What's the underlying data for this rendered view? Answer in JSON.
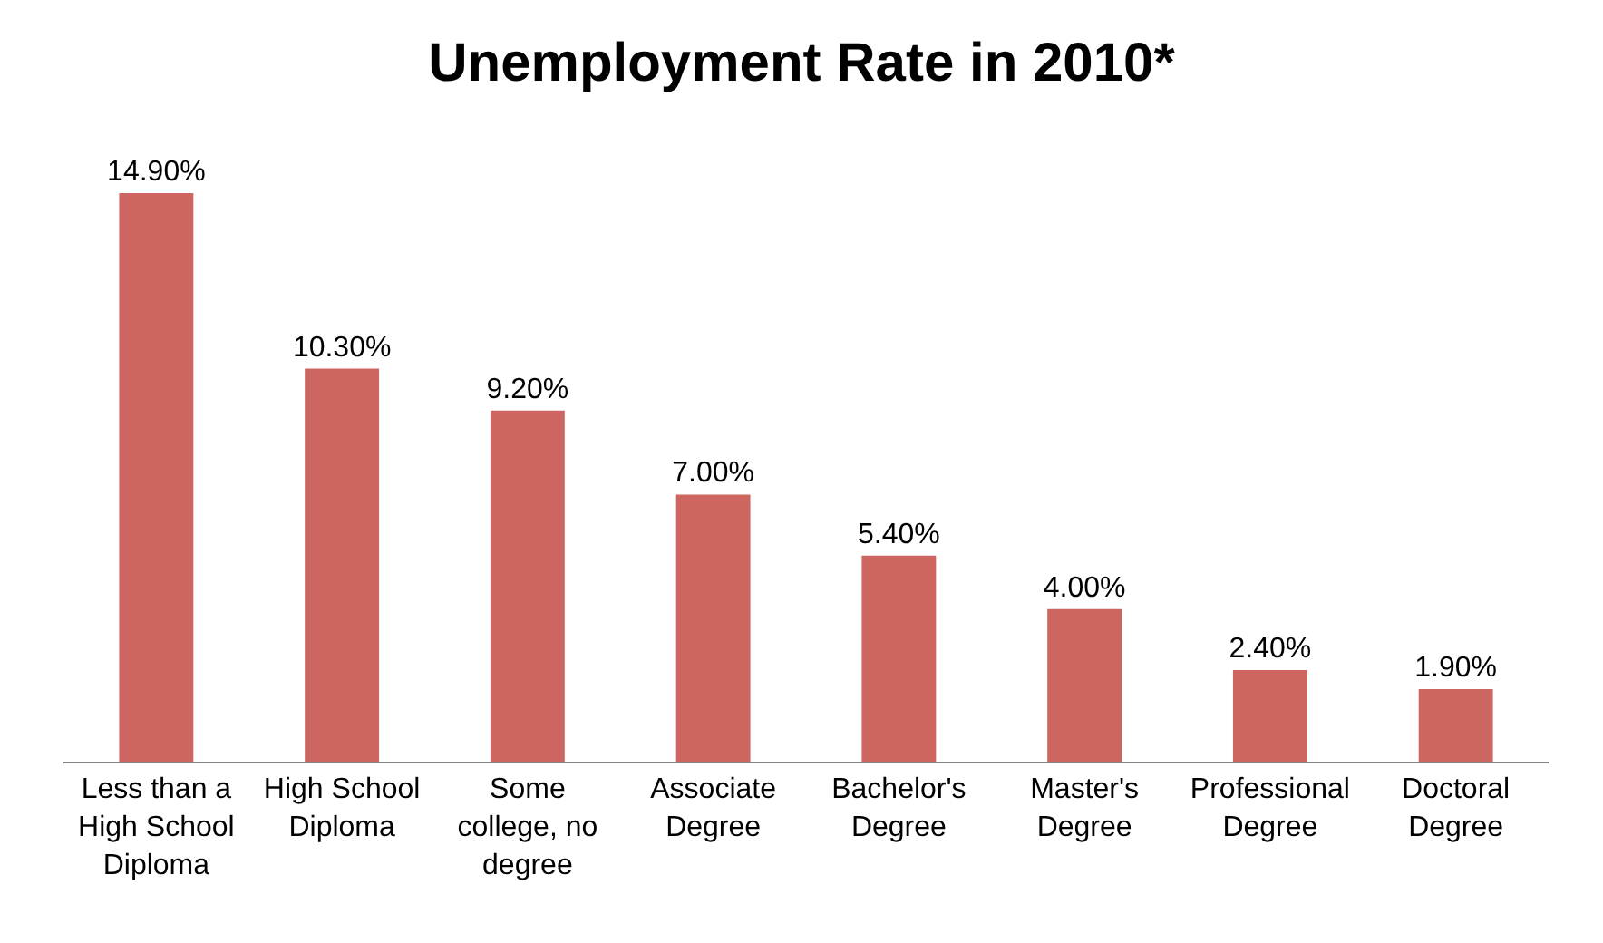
{
  "chart_data": {
    "type": "bar",
    "title": "Unemployment Rate in 2010*",
    "categories": [
      "Less than a High School Diploma",
      "High School Diploma",
      "Some college, no degree",
      "Associate Degree",
      "Bachelor's Degree",
      "Master's Degree",
      "Professional Degree",
      "Doctoral Degree"
    ],
    "values": [
      14.9,
      10.3,
      9.2,
      7.0,
      5.4,
      4.0,
      2.4,
      1.9
    ],
    "value_labels": [
      "14.90%",
      "10.30%",
      "9.20%",
      "7.00%",
      "5.40%",
      "4.00%",
      "2.40%",
      "1.90%"
    ],
    "color": "#cd6660",
    "grid": false,
    "tick_labels": "x"
  }
}
